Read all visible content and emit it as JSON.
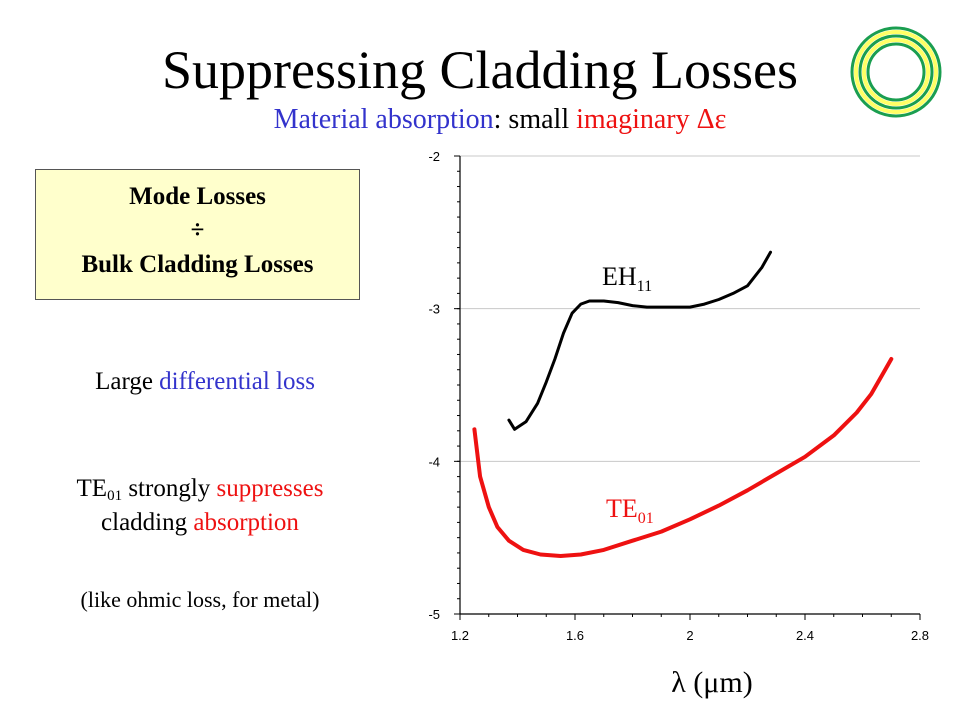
{
  "title": "Suppressing Cladding Losses",
  "subtitle": {
    "part1": "Material absorption",
    "part2": ": small ",
    "part3": "imaginary ",
    "part4": "Δε"
  },
  "box": {
    "line1": "Mode Losses",
    "line2": "÷",
    "line3": "Bulk Cladding Losses"
  },
  "text1": {
    "part1": "Large ",
    "part2": "differential loss"
  },
  "text2": {
    "te": "TE",
    "te_sub": "01",
    "part1": " strongly ",
    "part2": "suppresses",
    "part3": "cladding ",
    "part4": "absorption"
  },
  "text3": "(like ohmic loss, for metal)",
  "xaxis_label": "λ (μm)",
  "colors": {
    "blue": "#3333cc",
    "red": "#ee1111",
    "green": "#1a9e50",
    "yellow": "#ffff66",
    "box": "#ffffcc"
  },
  "chart_data": {
    "type": "line",
    "xlim": [
      1.2,
      2.8
    ],
    "ylim": [
      -5,
      -2
    ],
    "x_ticks": [
      "1.2",
      "1.6",
      "2",
      "2.4",
      "2.8"
    ],
    "y_ticks": [
      "-2",
      "-3",
      "-4",
      "-5"
    ],
    "grid": true,
    "series": [
      {
        "name": "EH",
        "name_sub": "11",
        "color": "#000000",
        "x": [
          1.37,
          1.39,
          1.43,
          1.47,
          1.5,
          1.53,
          1.56,
          1.59,
          1.62,
          1.65,
          1.7,
          1.75,
          1.8,
          1.85,
          1.9,
          1.95,
          2.0,
          2.05,
          2.1,
          2.15,
          2.2,
          2.25,
          2.28
        ],
        "y": [
          -3.73,
          -3.79,
          -3.74,
          -3.62,
          -3.48,
          -3.33,
          -3.16,
          -3.03,
          -2.97,
          -2.95,
          -2.95,
          -2.96,
          -2.98,
          -2.99,
          -2.99,
          -2.99,
          -2.99,
          -2.97,
          -2.94,
          -2.9,
          -2.85,
          -2.73,
          -2.63
        ]
      },
      {
        "name": "TE",
        "name_sub": "01",
        "color": "#ee1111",
        "x": [
          1.25,
          1.27,
          1.3,
          1.33,
          1.37,
          1.42,
          1.48,
          1.55,
          1.62,
          1.7,
          1.8,
          1.9,
          2.0,
          2.1,
          2.2,
          2.3,
          2.4,
          2.5,
          2.58,
          2.63,
          2.67,
          2.7
        ],
        "y": [
          -3.79,
          -4.1,
          -4.3,
          -4.43,
          -4.52,
          -4.58,
          -4.61,
          -4.62,
          -4.61,
          -4.58,
          -4.52,
          -4.46,
          -4.38,
          -4.29,
          -4.19,
          -4.08,
          -3.97,
          -3.83,
          -3.68,
          -3.56,
          -3.43,
          -3.33
        ]
      }
    ]
  }
}
